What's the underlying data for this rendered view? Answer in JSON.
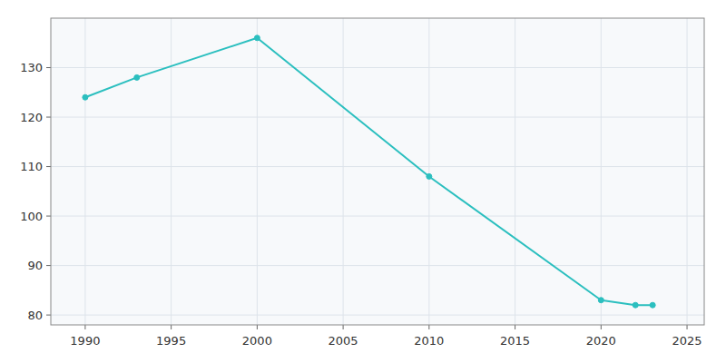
{
  "chart_data": {
    "type": "line",
    "x": [
      1990,
      1993,
      2000,
      2010,
      2020,
      2022,
      2023
    ],
    "values": [
      124,
      128,
      136,
      108,
      83,
      82,
      82
    ],
    "color": "#2bbfbf",
    "marker": "circle",
    "xlim": [
      1988,
      2026
    ],
    "ylim": [
      78,
      140
    ],
    "xticks": [
      1990,
      1995,
      2000,
      2005,
      2010,
      2015,
      2020,
      2025
    ],
    "yticks": [
      80,
      90,
      100,
      110,
      120,
      130
    ],
    "grid": true
  }
}
